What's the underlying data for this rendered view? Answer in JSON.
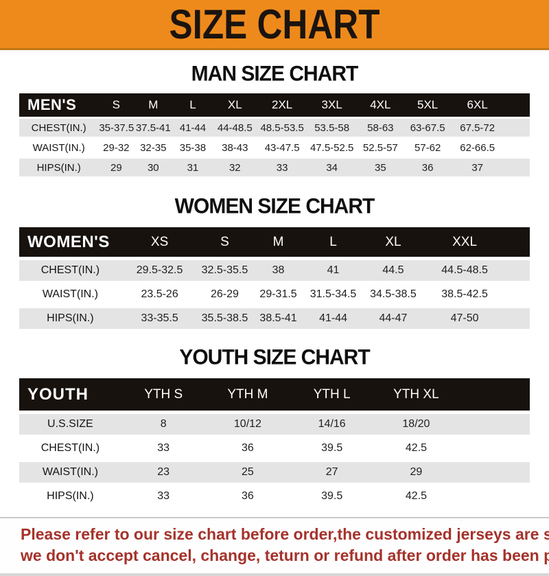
{
  "banner": {
    "title": "SIZE CHART"
  },
  "colors": {
    "banner_orange": "#ee8a1c",
    "band_black": "#17120e",
    "row_gray": "#e4e4e4",
    "footer_red": "#a5322b"
  },
  "sections": [
    {
      "title": "MAN SIZE CHART",
      "band_label": "MEN'S",
      "columns": [
        "S",
        "M",
        "L",
        "XL",
        "2XL",
        "3XL",
        "4XL",
        "5XL",
        "6XL"
      ],
      "rows": [
        {
          "label": "CHEST(IN.)",
          "values": [
            "35-37.5",
            "37.5-41",
            "41-44",
            "44-48.5",
            "48.5-53.5",
            "53.5-58",
            "58-63",
            "63-67.5",
            "67.5-72"
          ]
        },
        {
          "label": "WAIST(IN.)",
          "values": [
            "29-32",
            "32-35",
            "35-38",
            "38-43",
            "43-47.5",
            "47.5-52.5",
            "52.5-57",
            "57-62",
            "62-66.5"
          ]
        },
        {
          "label": "HIPS(IN.)",
          "values": [
            "29",
            "30",
            "31",
            "32",
            "33",
            "34",
            "35",
            "36",
            "37"
          ]
        }
      ]
    },
    {
      "title": "WOMEN SIZE CHART",
      "band_label": "WOMEN'S",
      "columns": [
        "XS",
        "S",
        "M",
        "L",
        "XL",
        "XXL"
      ],
      "rows": [
        {
          "label": "CHEST(IN.)",
          "values": [
            "29.5-32.5",
            "32.5-35.5",
            "38",
            "41",
            "44.5",
            "44.5-48.5"
          ]
        },
        {
          "label": "WAIST(IN.)",
          "values": [
            "23.5-26",
            "26-29",
            "29-31.5",
            "31.5-34.5",
            "34.5-38.5",
            "38.5-42.5"
          ]
        },
        {
          "label": "HIPS(IN.)",
          "values": [
            "33-35.5",
            "35.5-38.5",
            "38.5-41",
            "41-44",
            "44-47",
            "47-50"
          ]
        }
      ]
    },
    {
      "title": "YOUTH SIZE CHART",
      "band_label": "YOUTH",
      "columns": [
        "YTH S",
        "YTH M",
        "YTH L",
        "YTH XL"
      ],
      "rows": [
        {
          "label": "U.S.SIZE",
          "values": [
            "8",
            "10/12",
            "14/16",
            "18/20"
          ]
        },
        {
          "label": "CHEST(IN.)",
          "values": [
            "33",
            "36",
            "39.5",
            "42.5"
          ]
        },
        {
          "label": "WAIST(IN.)",
          "values": [
            "23",
            "25",
            "27",
            "29"
          ]
        },
        {
          "label": "HIPS(IN.)",
          "values": [
            "33",
            "36",
            "39.5",
            "42.5"
          ]
        }
      ]
    }
  ],
  "footer": {
    "line1": "Please refer to our size chart before order,the customized jerseys are special products,",
    "line2": "we don't accept cancel, change, teturn or refund after order has been placed!"
  }
}
